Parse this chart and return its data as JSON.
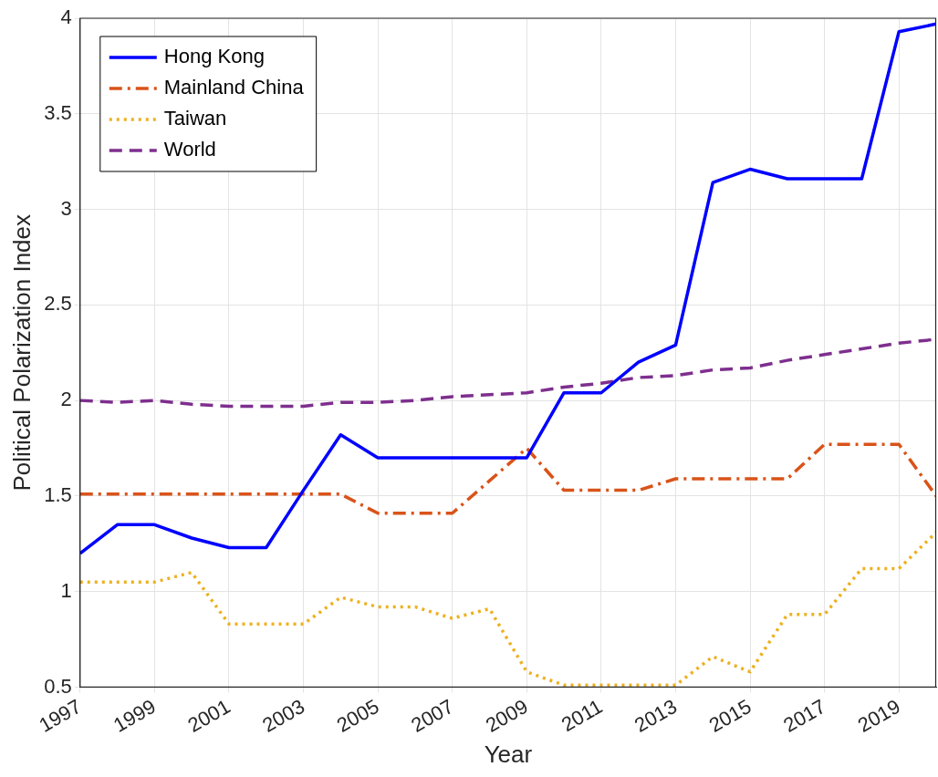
{
  "chart_data": {
    "type": "line",
    "xlabel": "Year",
    "ylabel": "Political Polarization Index",
    "x": [
      1997,
      1998,
      1999,
      2000,
      2001,
      2002,
      2003,
      2004,
      2005,
      2006,
      2007,
      2008,
      2009,
      2010,
      2011,
      2012,
      2013,
      2014,
      2015,
      2016,
      2017,
      2018,
      2019,
      2020
    ],
    "series": [
      {
        "name": "Hong Kong",
        "color": "#0000ff",
        "line_style": "solid",
        "values": [
          1.2,
          1.35,
          1.35,
          1.28,
          1.23,
          1.23,
          1.53,
          1.82,
          1.7,
          1.7,
          1.7,
          1.7,
          1.7,
          2.04,
          2.04,
          2.2,
          2.29,
          3.14,
          3.21,
          3.16,
          3.16,
          3.16,
          3.93,
          3.97
        ]
      },
      {
        "name": "Mainland China",
        "color": "#d95319",
        "line_style": "dashdot",
        "values": [
          1.51,
          1.51,
          1.51,
          1.51,
          1.51,
          1.51,
          1.51,
          1.51,
          1.41,
          1.41,
          1.41,
          1.58,
          1.75,
          1.53,
          1.53,
          1.53,
          1.59,
          1.59,
          1.59,
          1.59,
          1.77,
          1.77,
          1.77,
          1.5
        ]
      },
      {
        "name": "Taiwan",
        "color": "#edb120",
        "line_style": "dotted",
        "values": [
          1.05,
          1.05,
          1.05,
          1.1,
          0.83,
          0.83,
          0.83,
          0.97,
          0.92,
          0.92,
          0.86,
          0.91,
          0.58,
          0.51,
          0.51,
          0.51,
          0.51,
          0.66,
          0.58,
          0.88,
          0.88,
          1.12,
          1.12,
          1.31
        ]
      },
      {
        "name": "World",
        "color": "#7e2f8e",
        "line_style": "dashed",
        "values": [
          2.0,
          1.99,
          2.0,
          1.98,
          1.97,
          1.97,
          1.97,
          1.99,
          1.99,
          2.0,
          2.02,
          2.03,
          2.04,
          2.07,
          2.09,
          2.12,
          2.13,
          2.16,
          2.17,
          2.21,
          2.24,
          2.27,
          2.3,
          2.32
        ]
      }
    ],
    "xlim": [
      1997,
      2020
    ],
    "xticks": [
      1997,
      1999,
      2001,
      2003,
      2005,
      2007,
      2009,
      2011,
      2013,
      2015,
      2017,
      2019
    ],
    "ylim": [
      0.5,
      4
    ],
    "yticks": [
      0.5,
      1,
      1.5,
      2,
      2.5,
      3,
      3.5,
      4
    ],
    "grid": true,
    "legend": "top left",
    "marker": "none"
  }
}
